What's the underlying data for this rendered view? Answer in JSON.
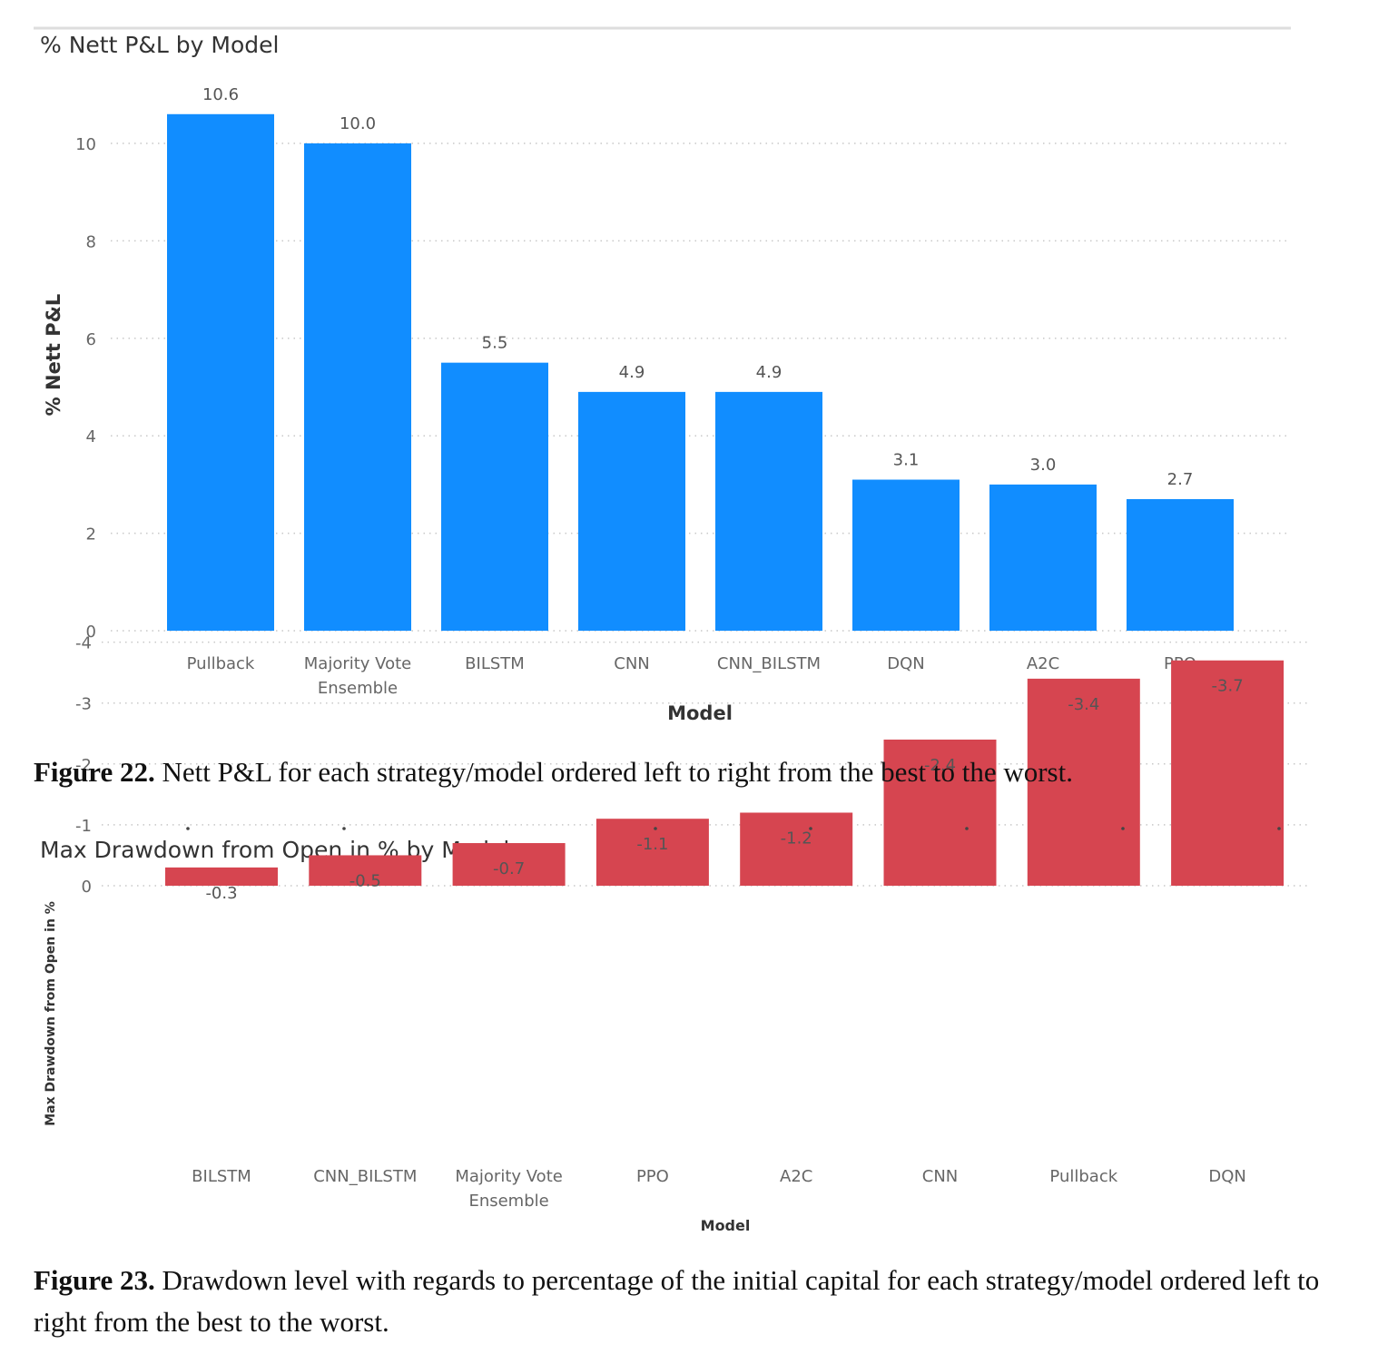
{
  "chart_data": [
    {
      "type": "bar",
      "title": "% Nett P&L by Model",
      "xlabel": "Model",
      "ylabel": "% Nett P&L",
      "categories": [
        [
          "Pullback"
        ],
        [
          "Majority Vote",
          "Ensemble"
        ],
        [
          "BILSTM"
        ],
        [
          "CNN"
        ],
        [
          "CNN_BILSTM"
        ],
        [
          "DQN"
        ],
        [
          "A2C"
        ],
        [
          "PPO"
        ]
      ],
      "values": [
        10.6,
        10.0,
        5.5,
        4.9,
        4.9,
        3.1,
        3.0,
        2.7
      ],
      "data_labels": [
        "10.6",
        "10.0",
        "5.5",
        "4.9",
        "4.9",
        "3.1",
        "3.0",
        "2.7"
      ],
      "ylim": [
        0,
        10.6
      ],
      "yticks": [
        0,
        2,
        4,
        6,
        8,
        10
      ],
      "grid": true,
      "color": "#118DFF"
    },
    {
      "type": "bar",
      "title": "Max Drawdown from Open in % by Model",
      "xlabel": "Model",
      "ylabel": "Max Drawdown from Open in %",
      "categories": [
        [
          "BILSTM"
        ],
        [
          "CNN_BILSTM"
        ],
        [
          "Majority Vote",
          "Ensemble"
        ],
        [
          "PPO"
        ],
        [
          "A2C"
        ],
        [
          "CNN"
        ],
        [
          "Pullback"
        ],
        [
          "DQN"
        ]
      ],
      "values": [
        -0.3,
        -0.5,
        -0.7,
        -1.1,
        -1.2,
        -2.4,
        -3.4,
        -3.7
      ],
      "data_labels": [
        "-0.3",
        "-0.5",
        "-0.7",
        "-1.1",
        "-1.2",
        "-2.4",
        "-3.4",
        "-3.7"
      ],
      "ylim": [
        -4,
        0
      ],
      "yticks": [
        0,
        -1,
        -2,
        -3,
        -4
      ],
      "grid": true,
      "color": "#D64550"
    }
  ],
  "captions": {
    "fig22_label": "Figure 22.",
    "fig22_text": " Nett P&L for each strategy/model ordered left to right from the best to the worst.",
    "fig23_label": "Figure 23.",
    "fig23_text": " Drawdown level with regards to percentage of the initial capital for each strategy/model ordered left to right from the best to the worst."
  }
}
